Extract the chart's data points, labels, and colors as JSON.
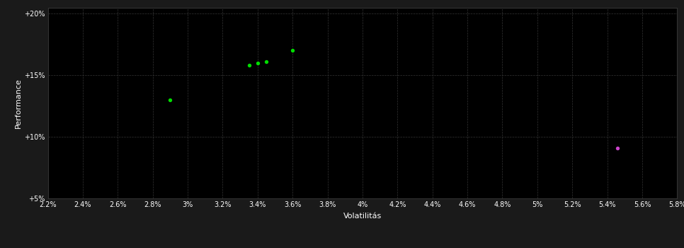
{
  "background_color": "#1a1a1a",
  "plot_bg_color": "#000000",
  "grid_color": "#333333",
  "text_color": "#ffffff",
  "xlabel": "Volatilitás",
  "ylabel": "Performance",
  "xlim": [
    0.022,
    0.058
  ],
  "ylim": [
    0.05,
    0.205
  ],
  "yticks": [
    0.05,
    0.1,
    0.15,
    0.2
  ],
  "ytick_labels": [
    "+5%",
    "+10%",
    "+15%",
    "+20%"
  ],
  "xticks": [
    0.022,
    0.024,
    0.026,
    0.028,
    0.03,
    0.032,
    0.034,
    0.036,
    0.038,
    0.04,
    0.042,
    0.044,
    0.046,
    0.048,
    0.05,
    0.052,
    0.054,
    0.056,
    0.058
  ],
  "xtick_labels": [
    "2.2%",
    "2.4%",
    "2.6%",
    "2.8%",
    "3%",
    "3.2%",
    "3.4%",
    "3.6%",
    "3.8%",
    "4%",
    "4.2%",
    "4.4%",
    "4.6%",
    "4.8%",
    "5%",
    "5.2%",
    "5.4%",
    "5.6%",
    "5.8%"
  ],
  "green_points": [
    [
      0.029,
      0.13
    ],
    [
      0.0335,
      0.158
    ],
    [
      0.034,
      0.16
    ],
    [
      0.0345,
      0.161
    ],
    [
      0.036,
      0.17
    ]
  ],
  "magenta_points": [
    [
      0.0546,
      0.091
    ]
  ],
  "green_color": "#00dd00",
  "magenta_color": "#cc44cc",
  "point_size": 8,
  "point_marker": "o"
}
